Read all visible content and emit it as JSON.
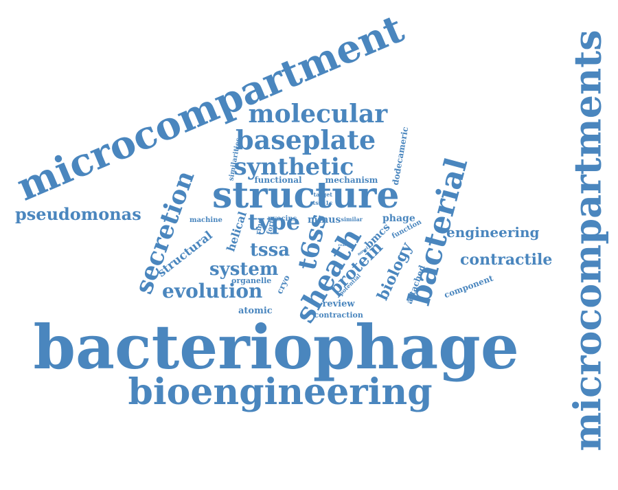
{
  "cloud": {
    "color": "#4a86be",
    "background": "#ffffff",
    "words": [
      "microcompartment",
      "microcompartments",
      "bacteriophage",
      "bioengineering",
      "molecular",
      "baseplate",
      "synthetic",
      "structure",
      "secretion",
      "bacterial",
      "pseudomonas",
      "type",
      "t6ss",
      "sheath",
      "tssa",
      "system",
      "evolution",
      "protein",
      "biology",
      "engineering",
      "contractile",
      "component",
      "structural",
      "helical",
      "machine",
      "atomic",
      "contraction",
      "review",
      "organelle",
      "cryo",
      "ring",
      "form",
      "attached",
      "function",
      "potential",
      "novel",
      "bmcs",
      "phage",
      "minus",
      "pyocins",
      "similar",
      "functional",
      "mechanism",
      "target",
      "tssb1c",
      "real",
      "dodecameric",
      "similarities"
    ]
  }
}
